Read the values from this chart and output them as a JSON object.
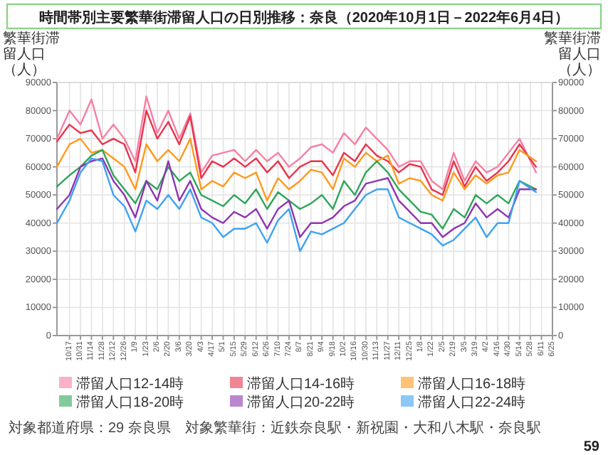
{
  "chart_data": {
    "type": "line",
    "title": "時間帯別主要繁華街滞留人口の日別推移：奈良（2020年10月1日－2022年6月4日）",
    "ylabel": "繁華街滞留人口（人）",
    "y2label": "繁華街滞留人口（人）",
    "x": [
      "2020-10-01",
      "2020-10-17",
      "2020-10-31",
      "2020-11-14",
      "2020-11-28",
      "2020-12-12",
      "2020-12-26",
      "2021-01-09",
      "2021-01-23",
      "2021-02-06",
      "2021-02-20",
      "2021-03-06",
      "2021-03-20",
      "2021-04-03",
      "2021-04-17",
      "2021-05-01",
      "2021-05-15",
      "2021-05-29",
      "2021-06-12",
      "2021-06-26",
      "2021-07-10",
      "2021-07-24",
      "2021-08-07",
      "2021-08-21",
      "2021-09-04",
      "2021-09-18",
      "2021-10-02",
      "2021-10-16",
      "2021-10-30",
      "2021-11-13",
      "2021-11-27",
      "2021-12-11",
      "2021-12-25",
      "2022-01-08",
      "2022-01-22",
      "2022-02-05",
      "2022-02-19",
      "2022-03-05",
      "2022-03-19",
      "2022-04-02",
      "2022-04-16",
      "2022-04-30",
      "2022-05-14",
      "2022-06-04"
    ],
    "series": [
      {
        "name": "滞留人口12-14時",
        "color": "#f77fa3",
        "values": [
          70000,
          80000,
          75000,
          84000,
          70000,
          75000,
          70000,
          62000,
          85000,
          72000,
          80000,
          70000,
          79000,
          58000,
          64000,
          65000,
          66000,
          62000,
          66000,
          62000,
          65000,
          60000,
          63000,
          67000,
          68000,
          65000,
          72000,
          68000,
          74000,
          70000,
          66000,
          60000,
          62000,
          62000,
          55000,
          52000,
          65000,
          55000,
          62000,
          58000,
          60000,
          65000,
          70000,
          58000
        ]
      },
      {
        "name": "滞留人口14-16時",
        "color": "#e8344c",
        "values": [
          69000,
          75000,
          72000,
          73000,
          68000,
          70000,
          68000,
          58000,
          80000,
          70000,
          76000,
          68000,
          78000,
          56000,
          62000,
          60000,
          63000,
          60000,
          63000,
          58000,
          62000,
          56000,
          60000,
          62000,
          62000,
          57000,
          65000,
          62000,
          68000,
          64000,
          62000,
          58000,
          61000,
          60000,
          52000,
          50000,
          62000,
          53000,
          60000,
          55000,
          58000,
          62000,
          68000,
          60000
        ]
      },
      {
        "name": "滞留人口16-18時",
        "color": "#ff9a1c",
        "values": [
          60000,
          68000,
          70000,
          65000,
          66000,
          63000,
          60000,
          52000,
          68000,
          62000,
          66000,
          62000,
          70000,
          52000,
          55000,
          53000,
          58000,
          56000,
          58000,
          48000,
          56000,
          52000,
          55000,
          59000,
          58000,
          52000,
          63000,
          60000,
          65000,
          62000,
          64000,
          54000,
          56000,
          55000,
          50000,
          48000,
          58000,
          52000,
          57000,
          54000,
          57000,
          58000,
          66000,
          62000
        ]
      },
      {
        "name": "滞留人口18-20時",
        "color": "#2ea65a",
        "values": [
          53000,
          57000,
          60000,
          64000,
          66000,
          57000,
          52000,
          47000,
          55000,
          52000,
          60000,
          55000,
          58000,
          50000,
          48000,
          46000,
          50000,
          47000,
          52000,
          45000,
          51000,
          48000,
          45000,
          47000,
          50000,
          45000,
          55000,
          50000,
          58000,
          62000,
          58000,
          52000,
          48000,
          44000,
          43000,
          38000,
          45000,
          42000,
          50000,
          47000,
          50000,
          47000,
          55000,
          52000
        ]
      },
      {
        "name": "滞留人口20-22時",
        "color": "#8e35b1",
        "values": [
          45000,
          50000,
          60000,
          62000,
          63000,
          55000,
          50000,
          42000,
          55000,
          48000,
          62000,
          48000,
          55000,
          45000,
          42000,
          40000,
          44000,
          42000,
          45000,
          38000,
          45000,
          48000,
          35000,
          40000,
          40000,
          42000,
          46000,
          48000,
          54000,
          55000,
          56000,
          48000,
          44000,
          40000,
          40000,
          35000,
          38000,
          40000,
          47000,
          42000,
          45000,
          42000,
          52000,
          52000
        ]
      },
      {
        "name": "滞留人口22-24時",
        "color": "#3ea2f2",
        "values": [
          40000,
          48000,
          58000,
          63000,
          62000,
          50000,
          46000,
          37000,
          48000,
          45000,
          50000,
          45000,
          52000,
          42000,
          40000,
          35000,
          38000,
          38000,
          40000,
          33000,
          41000,
          45000,
          30000,
          37000,
          36000,
          38000,
          40000,
          45000,
          50000,
          52000,
          52000,
          42000,
          40000,
          38000,
          36000,
          32000,
          34000,
          38000,
          42000,
          35000,
          40000,
          40000,
          55000,
          51000
        ]
      }
    ],
    "xlim": [
      "2020-10-01",
      "2022-06-25"
    ],
    "xticks": [
      {
        "value": "2020-10-17",
        "label": "10/17"
      },
      {
        "value": "2020-10-31",
        "label": "10/31"
      },
      {
        "value": "2020-11-14",
        "label": "11/14"
      },
      {
        "value": "2020-11-28",
        "label": "11/28"
      },
      {
        "value": "2020-12-12",
        "label": "12/12"
      },
      {
        "value": "2020-12-26",
        "label": "12/26"
      },
      {
        "value": "2021-01-09",
        "label": "1/9"
      },
      {
        "value": "2021-01-23",
        "label": "1/23"
      },
      {
        "value": "2021-02-06",
        "label": "2/6"
      },
      {
        "value": "2021-02-20",
        "label": "2/20"
      },
      {
        "value": "2021-03-06",
        "label": "3/6"
      },
      {
        "value": "2021-03-20",
        "label": "3/20"
      },
      {
        "value": "2021-04-03",
        "label": "4/3"
      },
      {
        "value": "2021-04-17",
        "label": "4/17"
      },
      {
        "value": "2021-05-01",
        "label": "5/1"
      },
      {
        "value": "2021-05-15",
        "label": "5/15"
      },
      {
        "value": "2021-05-29",
        "label": "5/29"
      },
      {
        "value": "2021-06-12",
        "label": "6/12"
      },
      {
        "value": "2021-06-26",
        "label": "6/26"
      },
      {
        "value": "2021-07-10",
        "label": "7/10"
      },
      {
        "value": "2021-07-24",
        "label": "7/24"
      },
      {
        "value": "2021-08-07",
        "label": "8/7"
      },
      {
        "value": "2021-08-21",
        "label": "8/21"
      },
      {
        "value": "2021-09-04",
        "label": "9/4"
      },
      {
        "value": "2021-09-18",
        "label": "9/18"
      },
      {
        "value": "2021-10-02",
        "label": "10/2"
      },
      {
        "value": "2021-10-16",
        "label": "10/16"
      },
      {
        "value": "2021-10-30",
        "label": "10/30"
      },
      {
        "value": "2021-11-13",
        "label": "11/13"
      },
      {
        "value": "2021-11-27",
        "label": "11/27"
      },
      {
        "value": "2021-12-11",
        "label": "12/11"
      },
      {
        "value": "2021-12-25",
        "label": "12/25"
      },
      {
        "value": "2022-01-08",
        "label": "1/8"
      },
      {
        "value": "2022-01-22",
        "label": "1/22"
      },
      {
        "value": "2022-02-05",
        "label": "2/5"
      },
      {
        "value": "2022-02-19",
        "label": "2/19"
      },
      {
        "value": "2022-03-05",
        "label": "3/5"
      },
      {
        "value": "2022-03-19",
        "label": "3/19"
      },
      {
        "value": "2022-04-02",
        "label": "4/2"
      },
      {
        "value": "2022-04-16",
        "label": "4/16"
      },
      {
        "value": "2022-04-30",
        "label": "4/30"
      },
      {
        "value": "2022-05-14",
        "label": "5/14"
      },
      {
        "value": "2022-05-28",
        "label": "5/28"
      },
      {
        "value": "2022-06-11",
        "label": "6/11"
      },
      {
        "value": "2022-06-25",
        "label": "6/25"
      }
    ],
    "ylim": [
      0,
      90000
    ],
    "yticks": [
      0,
      10000,
      20000,
      30000,
      40000,
      50000,
      60000,
      70000,
      80000,
      90000
    ],
    "y2lim": [
      0,
      90000
    ],
    "y2ticks": [
      0,
      10000,
      20000,
      30000,
      40000,
      50000,
      60000,
      70000,
      80000,
      90000
    ],
    "grid": true,
    "legend": "bottom",
    "annotations": [
      "対象都道府県：29 奈良県",
      "対象繁華街：近鉄奈良駅・新祝園・大和八木駅・奈良駅",
      "59"
    ]
  }
}
